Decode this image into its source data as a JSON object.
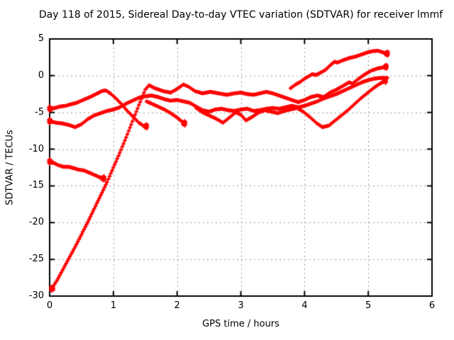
{
  "title": "Day 118 of 2015, Sidereal Day-to-day VTEC variation (SDTVAR) for receiver lmmf",
  "colors": {
    "trace": "#ff0000",
    "axis": "#000000",
    "grid": "#9a9a9a",
    "background": "#ffffff"
  },
  "chart_data": {
    "type": "scatter",
    "title": "Day 118 of 2015, Sidereal Day-to-day VTEC variation (SDTVAR) for receiver lmmf",
    "xlabel": "GPS time / hours",
    "ylabel": "SDTVAR / TECUs",
    "xlim": [
      0,
      6
    ],
    "ylim": [
      -30,
      5
    ],
    "xticks": [
      0,
      1,
      2,
      3,
      4,
      5,
      6
    ],
    "yticks": [
      5,
      0,
      -5,
      -10,
      -15,
      -20,
      -25,
      -30
    ],
    "grid": true,
    "legend": "none",
    "marker": "plus",
    "marker_color": "#ff0000",
    "series": [
      {
        "name": "trace-1-steep-riser",
        "smear_start": true,
        "smear_end": true,
        "points": [
          [
            0.03,
            -29.0
          ],
          [
            0.06,
            -28.6
          ],
          [
            0.12,
            -27.8
          ],
          [
            0.2,
            -26.5
          ],
          [
            0.3,
            -24.9
          ],
          [
            0.4,
            -23.3
          ],
          [
            0.5,
            -21.6
          ],
          [
            0.6,
            -19.9
          ],
          [
            0.7,
            -18.1
          ],
          [
            0.8,
            -16.3
          ],
          [
            0.9,
            -14.5
          ],
          [
            1.0,
            -12.5
          ],
          [
            1.1,
            -10.5
          ],
          [
            1.2,
            -8.4
          ],
          [
            1.3,
            -6.2
          ],
          [
            1.4,
            -4.0
          ],
          [
            1.5,
            -1.9
          ],
          [
            1.56,
            -1.3
          ],
          [
            1.65,
            -1.7
          ],
          [
            1.78,
            -2.1
          ],
          [
            1.9,
            -2.3
          ],
          [
            2.0,
            -1.8
          ],
          [
            2.1,
            -1.2
          ],
          [
            2.18,
            -1.5
          ],
          [
            2.28,
            -2.1
          ],
          [
            2.4,
            -2.4
          ],
          [
            2.52,
            -2.2
          ],
          [
            2.65,
            -2.4
          ],
          [
            2.78,
            -2.6
          ],
          [
            2.9,
            -2.4
          ],
          [
            3.0,
            -2.3
          ],
          [
            3.1,
            -2.5
          ],
          [
            3.2,
            -2.6
          ],
          [
            3.3,
            -2.4
          ],
          [
            3.4,
            -2.2
          ],
          [
            3.5,
            -2.4
          ],
          [
            3.6,
            -2.7
          ],
          [
            3.7,
            -3.0
          ],
          [
            3.8,
            -3.3
          ],
          [
            3.9,
            -3.6
          ],
          [
            4.0,
            -3.3
          ],
          [
            4.1,
            -2.9
          ],
          [
            4.2,
            -2.7
          ],
          [
            4.3,
            -2.9
          ],
          [
            4.4,
            -2.3
          ],
          [
            4.5,
            -1.9
          ],
          [
            4.6,
            -1.4
          ],
          [
            4.7,
            -0.9
          ],
          [
            4.75,
            -1.1
          ],
          [
            4.85,
            -0.4
          ],
          [
            4.95,
            0.2
          ],
          [
            5.05,
            0.7
          ],
          [
            5.15,
            1.0
          ],
          [
            5.28,
            1.2
          ]
        ]
      },
      {
        "name": "trace-2-rise-fall",
        "smear_start": true,
        "smear_end": true,
        "points": [
          [
            0.0,
            -4.5
          ],
          [
            0.08,
            -4.4
          ],
          [
            0.16,
            -4.2
          ],
          [
            0.25,
            -4.1
          ],
          [
            0.33,
            -3.9
          ],
          [
            0.42,
            -3.7
          ],
          [
            0.5,
            -3.4
          ],
          [
            0.58,
            -3.1
          ],
          [
            0.66,
            -2.8
          ],
          [
            0.75,
            -2.4
          ],
          [
            0.82,
            -2.1
          ],
          [
            0.88,
            -2.0
          ],
          [
            0.95,
            -2.4
          ],
          [
            1.03,
            -3.0
          ],
          [
            1.12,
            -3.8
          ],
          [
            1.22,
            -4.8
          ],
          [
            1.32,
            -5.7
          ],
          [
            1.4,
            -6.4
          ],
          [
            1.47,
            -6.8
          ],
          [
            1.52,
            -6.9
          ]
        ]
      },
      {
        "name": "trace-3-long-band",
        "smear_start": true,
        "smear_end": false,
        "points": [
          [
            0.0,
            -6.2
          ],
          [
            0.1,
            -6.4
          ],
          [
            0.2,
            -6.5
          ],
          [
            0.3,
            -6.7
          ],
          [
            0.4,
            -7.0
          ],
          [
            0.5,
            -6.6
          ],
          [
            0.6,
            -5.9
          ],
          [
            0.7,
            -5.4
          ],
          [
            0.8,
            -5.1
          ],
          [
            0.9,
            -4.8
          ],
          [
            1.0,
            -4.6
          ],
          [
            1.1,
            -4.3
          ],
          [
            1.2,
            -3.8
          ],
          [
            1.3,
            -3.4
          ],
          [
            1.4,
            -3.0
          ],
          [
            1.5,
            -2.8
          ],
          [
            1.6,
            -2.7
          ],
          [
            1.7,
            -2.9
          ],
          [
            1.8,
            -3.2
          ],
          [
            1.9,
            -3.4
          ],
          [
            2.0,
            -3.3
          ],
          [
            2.1,
            -3.5
          ],
          [
            2.2,
            -3.7
          ],
          [
            2.3,
            -4.2
          ],
          [
            2.4,
            -4.7
          ],
          [
            2.5,
            -4.9
          ],
          [
            2.6,
            -4.6
          ],
          [
            2.7,
            -4.5
          ],
          [
            2.8,
            -4.7
          ],
          [
            2.9,
            -4.8
          ],
          [
            3.0,
            -4.6
          ],
          [
            3.1,
            -4.5
          ],
          [
            3.2,
            -4.8
          ],
          [
            3.3,
            -4.7
          ],
          [
            3.4,
            -4.5
          ],
          [
            3.5,
            -4.4
          ],
          [
            3.6,
            -4.5
          ],
          [
            3.7,
            -4.3
          ],
          [
            3.8,
            -4.1
          ],
          [
            3.9,
            -4.3
          ],
          [
            4.0,
            -4.1
          ],
          [
            4.1,
            -3.8
          ],
          [
            4.2,
            -3.5
          ],
          [
            4.3,
            -3.1
          ],
          [
            4.4,
            -2.8
          ],
          [
            4.5,
            -2.5
          ],
          [
            4.6,
            -2.1
          ],
          [
            4.7,
            -1.7
          ],
          [
            4.8,
            -1.3
          ],
          [
            4.9,
            -0.9
          ],
          [
            5.0,
            -0.6
          ],
          [
            5.1,
            -0.4
          ],
          [
            5.2,
            -0.3
          ],
          [
            5.3,
            -0.3
          ]
        ]
      },
      {
        "name": "trace-4-short-low",
        "smear_start": true,
        "smear_end": true,
        "points": [
          [
            0.0,
            -11.7
          ],
          [
            0.07,
            -11.9
          ],
          [
            0.14,
            -12.2
          ],
          [
            0.22,
            -12.4
          ],
          [
            0.3,
            -12.4
          ],
          [
            0.38,
            -12.6
          ],
          [
            0.46,
            -12.8
          ],
          [
            0.54,
            -12.9
          ],
          [
            0.62,
            -13.2
          ],
          [
            0.7,
            -13.5
          ],
          [
            0.78,
            -13.8
          ],
          [
            0.85,
            -14.0
          ]
        ]
      },
      {
        "name": "trace-5-dips",
        "smear_start": false,
        "smear_end": true,
        "points": [
          [
            2.3,
            -4.4
          ],
          [
            2.4,
            -5.0
          ],
          [
            2.5,
            -5.4
          ],
          [
            2.6,
            -5.8
          ],
          [
            2.72,
            -6.4
          ],
          [
            2.82,
            -5.7
          ],
          [
            2.92,
            -5.0
          ],
          [
            3.0,
            -5.3
          ],
          [
            3.08,
            -6.1
          ],
          [
            3.18,
            -5.6
          ],
          [
            3.28,
            -5.0
          ],
          [
            3.38,
            -4.7
          ],
          [
            3.48,
            -4.9
          ],
          [
            3.58,
            -5.1
          ],
          [
            3.68,
            -4.8
          ],
          [
            3.78,
            -4.6
          ],
          [
            3.88,
            -4.4
          ],
          [
            3.98,
            -4.9
          ],
          [
            4.08,
            -5.6
          ],
          [
            4.18,
            -6.4
          ],
          [
            4.28,
            -7.0
          ],
          [
            4.38,
            -6.8
          ],
          [
            4.48,
            -6.1
          ],
          [
            4.58,
            -5.4
          ],
          [
            4.68,
            -4.7
          ],
          [
            4.78,
            -3.9
          ],
          [
            4.88,
            -3.1
          ],
          [
            4.98,
            -2.4
          ],
          [
            5.08,
            -1.7
          ],
          [
            5.18,
            -1.1
          ],
          [
            5.27,
            -0.7
          ]
        ]
      },
      {
        "name": "trace-6-top-right",
        "smear_start": false,
        "smear_end": true,
        "points": [
          [
            3.78,
            -1.7
          ],
          [
            3.86,
            -1.2
          ],
          [
            3.94,
            -0.8
          ],
          [
            4.0,
            -0.4
          ],
          [
            4.06,
            -0.1
          ],
          [
            4.12,
            0.2
          ],
          [
            4.18,
            0.1
          ],
          [
            4.25,
            0.4
          ],
          [
            4.33,
            0.8
          ],
          [
            4.4,
            1.4
          ],
          [
            4.47,
            1.9
          ],
          [
            4.52,
            1.8
          ],
          [
            4.6,
            2.1
          ],
          [
            4.7,
            2.4
          ],
          [
            4.8,
            2.6
          ],
          [
            4.9,
            2.9
          ],
          [
            5.0,
            3.2
          ],
          [
            5.08,
            3.35
          ],
          [
            5.15,
            3.4
          ],
          [
            5.22,
            3.2
          ],
          [
            5.3,
            3.0
          ]
        ]
      },
      {
        "name": "trace-7-short-descender",
        "smear_start": false,
        "smear_end": true,
        "points": [
          [
            1.52,
            -3.5
          ],
          [
            1.6,
            -3.8
          ],
          [
            1.7,
            -4.2
          ],
          [
            1.8,
            -4.6
          ],
          [
            1.9,
            -5.1
          ],
          [
            2.0,
            -5.7
          ],
          [
            2.07,
            -6.2
          ],
          [
            2.12,
            -6.5
          ]
        ]
      }
    ]
  }
}
